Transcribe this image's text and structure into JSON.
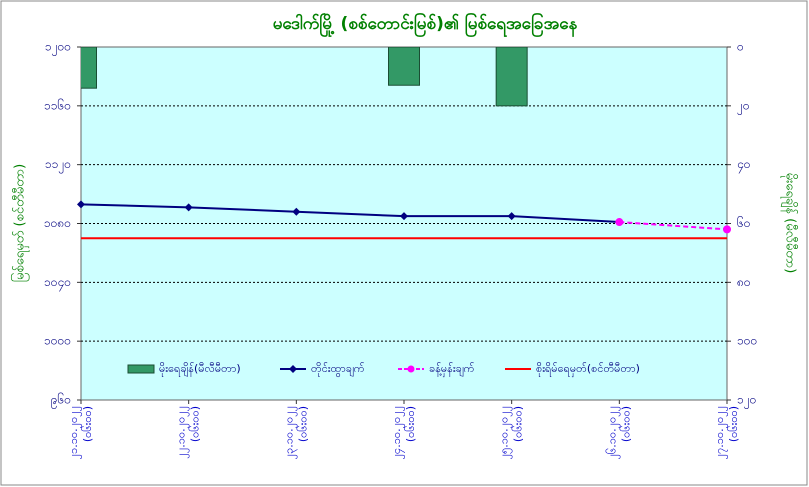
{
  "chart_data": {
    "type": "combo",
    "title": "မဒေါက်မြို့ (စစ်တောင်းမြစ်)၏ မြစ်ရေအခြေအနေ",
    "y_label": "မြစ်ရေမှတ် (စင်တီမီတာ)",
    "y2_label": "မိုးရေချိန် (မီလီမီတာ)",
    "categories": [
      "၂၁.၁၀.၂၀၂၂ (၀၆း၀၀)",
      "၂၂.၁၀.၂၀၂၂ (၀၆း၀၀)",
      "၂၃.၁၀.၂၀၂၂ (၀၆း၀၀)",
      "၂၄.၁၀.၂၀၂၂ (၀၆း၀၀)",
      "၂၅.၁၀.၂၀၂၂ (၀၆း၀၀)",
      "၂၆.၁၀.၂၀၂၂ (၀၆း၀၀)",
      "၂၇.၁၀.၂၀၂၂ (၀၆း၀၀)"
    ],
    "ylim": [
      960,
      1200
    ],
    "yticks": [
      {
        "value": 960,
        "label": "၉၆၀"
      },
      {
        "value": 1000,
        "label": "၁၀၀၀"
      },
      {
        "value": 1040,
        "label": "၁၀၄၀"
      },
      {
        "value": 1080,
        "label": "၁၀၈၀"
      },
      {
        "value": 1120,
        "label": "၁၁၂၀"
      },
      {
        "value": 1160,
        "label": "၁၁၆၀"
      },
      {
        "value": 1200,
        "label": "၁၂၀၀"
      }
    ],
    "y2lim": [
      0,
      120
    ],
    "y2_inverted": true,
    "y2ticks": [
      {
        "value": 0,
        "label": "၀"
      },
      {
        "value": 20,
        "label": "၂၀"
      },
      {
        "value": 40,
        "label": "၄၀"
      },
      {
        "value": 60,
        "label": "၆၀"
      },
      {
        "value": 80,
        "label": "၈၀"
      },
      {
        "value": 100,
        "label": "၁၀၀"
      },
      {
        "value": 120,
        "label": "၁၂၀"
      }
    ],
    "grid": true,
    "series": [
      {
        "name": "မိုးရေချိန်(မီလီမီတာ)",
        "type": "bar",
        "axis": "y2",
        "color": "#339966",
        "values": [
          14,
          0,
          0,
          13,
          20,
          0,
          0
        ]
      },
      {
        "name": "တိုင်းထွာချက်",
        "type": "line",
        "color": "#000080",
        "values": [
          1093,
          1091,
          1088,
          1085,
          1085,
          1081,
          null
        ]
      },
      {
        "name": "ခန့်မှန်းချက်",
        "type": "line",
        "dashed": true,
        "color": "#ff00ff",
        "values": [
          null,
          null,
          null,
          null,
          null,
          1081,
          1076
        ]
      }
    ],
    "danger_level": {
      "name": "စိုးရိမ်ရေမှတ်(စင်တီမီတာ)",
      "value": 1070,
      "color": "#ff0000"
    }
  }
}
